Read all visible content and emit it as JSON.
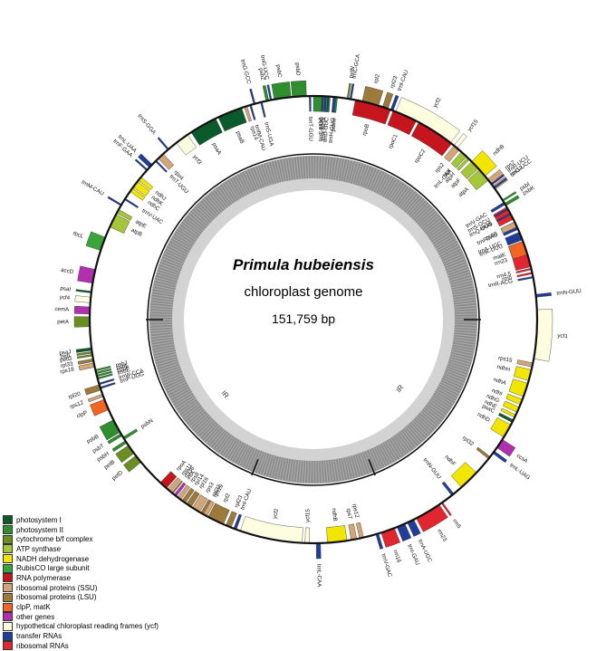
{
  "diagram": {
    "species": "Primula hubeiensis",
    "subtitle": "chloroplast genome",
    "length_label": "151,759 bp",
    "ir_labels": [
      "IR",
      "IR"
    ]
  },
  "legend": [
    {
      "label": "photosystem I",
      "color": "#0b5a2c"
    },
    {
      "label": "photosystem II",
      "color": "#2f8f2f"
    },
    {
      "label": "cytochrome b/f complex",
      "color": "#6b8e23"
    },
    {
      "label": "ATP synthase",
      "color": "#a4c639"
    },
    {
      "label": "NADH dehydrogenase",
      "color": "#f2e500"
    },
    {
      "label": "RubisCO large subunit",
      "color": "#3aa33a"
    },
    {
      "label": "RNA polymerase",
      "color": "#c4161c"
    },
    {
      "label": "ribosomal proteins (SSU)",
      "color": "#d2a679"
    },
    {
      "label": "ribosomal proteins (LSU)",
      "color": "#9c7a3c"
    },
    {
      "label": "clpP, matK",
      "color": "#f26522"
    },
    {
      "label": "other genes",
      "color": "#b030b0"
    },
    {
      "label": "hypothetical chloroplast reading frames (ycf)",
      "color": "#fffde0"
    },
    {
      "label": "transfer RNAs",
      "color": "#1f3d99"
    },
    {
      "label": "ribosomal RNAs",
      "color": "#e0262e"
    }
  ],
  "genes": [
    {
      "name": "psbA",
      "cat": "photosystem II",
      "pos": 0.0,
      "len": 0.012,
      "out": false
    },
    {
      "name": "trnH-GUG",
      "cat": "transfer RNAs",
      "pos": 0.014,
      "len": 0.003,
      "out": false
    },
    {
      "name": "rpl2",
      "cat": "ribosomal proteins (LSU)",
      "pos": 0.035,
      "len": 0.012,
      "out": true
    },
    {
      "name": "rpl23",
      "cat": "ribosomal proteins (LSU)",
      "pos": 0.05,
      "len": 0.004,
      "out": true
    },
    {
      "name": "trnI-CAU",
      "cat": "transfer RNAs",
      "pos": 0.056,
      "len": 0.002,
      "out": true
    },
    {
      "name": "ycf2",
      "cat": "hypothetical chloroplast reading frames (ycf)",
      "pos": 0.06,
      "len": 0.045,
      "out": true
    },
    {
      "name": "ycf15",
      "cat": "hypothetical chloroplast reading frames (ycf)",
      "pos": 0.108,
      "len": 0.003,
      "out": true
    },
    {
      "name": "trnL-CAA",
      "cat": "transfer RNAs",
      "pos": 0.117,
      "len": 0.003,
      "out": false
    },
    {
      "name": "ndhB",
      "cat": "NADH dehydrogenase",
      "pos": 0.125,
      "len": 0.014,
      "out": true
    },
    {
      "name": "rps7",
      "cat": "ribosomal proteins (SSU)",
      "pos": 0.142,
      "len": 0.004,
      "out": true
    },
    {
      "name": "rps12",
      "cat": "ribosomal proteins (SSU)",
      "pos": 0.148,
      "len": 0.003,
      "out": true
    },
    {
      "name": "trnV-GAC",
      "cat": "transfer RNAs",
      "pos": 0.162,
      "len": 0.002,
      "out": false
    },
    {
      "name": "rrn16",
      "cat": "ribosomal RNAs",
      "pos": 0.166,
      "len": 0.01,
      "out": false
    },
    {
      "name": "trnI-GAU",
      "cat": "transfer RNAs",
      "pos": 0.178,
      "len": 0.006,
      "out": false
    },
    {
      "name": "trnA-UGC",
      "cat": "transfer RNAs",
      "pos": 0.186,
      "len": 0.005,
      "out": false
    },
    {
      "name": "rrn23",
      "cat": "ribosomal RNAs",
      "pos": 0.193,
      "len": 0.019,
      "out": false
    },
    {
      "name": "rrn4.5",
      "cat": "ribosomal RNAs",
      "pos": 0.213,
      "len": 0.001,
      "out": false
    },
    {
      "name": "rrn5",
      "cat": "ribosomal RNAs",
      "pos": 0.216,
      "len": 0.001,
      "out": false
    },
    {
      "name": "trnR-ACG",
      "cat": "transfer RNAs",
      "pos": 0.219,
      "len": 0.001,
      "out": false
    },
    {
      "name": "trnN-GUU",
      "cat": "transfer RNAs",
      "pos": 0.232,
      "len": 0.002,
      "out": true
    },
    {
      "name": "ycf1",
      "cat": "hypothetical chloroplast reading frames (ycf)",
      "pos": 0.243,
      "len": 0.035,
      "out": true
    },
    {
      "name": "rps15",
      "cat": "ribosomal proteins (SSU)",
      "pos": 0.281,
      "len": 0.003,
      "out": false
    },
    {
      "name": "ndhH",
      "cat": "NADH dehydrogenase",
      "pos": 0.286,
      "len": 0.008,
      "out": false
    },
    {
      "name": "ndhA",
      "cat": "NADH dehydrogenase",
      "pos": 0.296,
      "len": 0.01,
      "out": false
    },
    {
      "name": "ndhI",
      "cat": "NADH dehydrogenase",
      "pos": 0.308,
      "len": 0.004,
      "out": false
    },
    {
      "name": "ndhG",
      "cat": "NADH dehydrogenase",
      "pos": 0.314,
      "len": 0.004,
      "out": false
    },
    {
      "name": "ndhE",
      "cat": "NADH dehydrogenase",
      "pos": 0.32,
      "len": 0.002,
      "out": false
    },
    {
      "name": "psaC",
      "cat": "photosystem I",
      "pos": 0.324,
      "len": 0.002,
      "out": false
    },
    {
      "name": "ndhD",
      "cat": "NADH dehydrogenase",
      "pos": 0.328,
      "len": 0.01,
      "out": false
    },
    {
      "name": "ccsA",
      "cat": "other genes",
      "pos": 0.34,
      "len": 0.007,
      "out": true
    },
    {
      "name": "trnL-UAG",
      "cat": "transfer RNAs",
      "pos": 0.35,
      "len": 0.002,
      "out": true
    },
    {
      "name": "rpl32",
      "cat": "ribosomal proteins (LSU)",
      "pos": 0.355,
      "len": 0.002,
      "out": false
    },
    {
      "name": "ndhF",
      "cat": "NADH dehydrogenase",
      "pos": 0.37,
      "len": 0.015,
      "out": false
    },
    {
      "name": "trnN-GUU",
      "cat": "transfer RNAs",
      "pos": 0.392,
      "len": 0.002,
      "out": false
    },
    {
      "name": "rrn5",
      "cat": "ribosomal RNAs",
      "pos": 0.402,
      "len": 0.001,
      "out": true
    },
    {
      "name": "rrn23",
      "cat": "ribosomal RNAs",
      "pos": 0.405,
      "len": 0.019,
      "out": true
    },
    {
      "name": "trnA-UGC",
      "cat": "transfer RNAs",
      "pos": 0.426,
      "len": 0.005,
      "out": true
    },
    {
      "name": "trnI-GAU",
      "cat": "transfer RNAs",
      "pos": 0.433,
      "len": 0.006,
      "out": true
    },
    {
      "name": "rrn16",
      "cat": "ribosomal RNAs",
      "pos": 0.441,
      "len": 0.01,
      "out": true
    },
    {
      "name": "trnV-GAC",
      "cat": "transfer RNAs",
      "pos": 0.453,
      "len": 0.002,
      "out": true
    },
    {
      "name": "rps12",
      "cat": "ribosomal proteins (SSU)",
      "pos": 0.464,
      "len": 0.003,
      "out": false
    },
    {
      "name": "rps7",
      "cat": "ribosomal proteins (SSU)",
      "pos": 0.469,
      "len": 0.004,
      "out": false
    },
    {
      "name": "ndhB",
      "cat": "NADH dehydrogenase",
      "pos": 0.476,
      "len": 0.014,
      "out": false
    },
    {
      "name": "trnL-CAA",
      "cat": "transfer RNAs",
      "pos": 0.495,
      "len": 0.003,
      "out": true
    },
    {
      "name": "ycf15",
      "cat": "hypothetical chloroplast reading frames (ycf)",
      "pos": 0.503,
      "len": 0.003,
      "out": false
    },
    {
      "name": "ycf2",
      "cat": "hypothetical chloroplast reading frames (ycf)",
      "pos": 0.508,
      "len": 0.045,
      "out": false
    },
    {
      "name": "trnI-CAU",
      "cat": "transfer RNAs",
      "pos": 0.556,
      "len": 0.002,
      "out": false
    },
    {
      "name": "rpl23",
      "cat": "ribosomal proteins (LSU)",
      "pos": 0.56,
      "len": 0.004,
      "out": false
    },
    {
      "name": "rpl2",
      "cat": "ribosomal proteins (LSU)",
      "pos": 0.566,
      "len": 0.012,
      "out": false
    },
    {
      "name": "rpl22",
      "cat": "ribosomal proteins (LSU)",
      "pos": 0.58,
      "len": 0.004,
      "out": false
    },
    {
      "name": "rps19",
      "cat": "ribosomal proteins (SSU)",
      "pos": 0.579,
      "len": 0.003,
      "out": false
    },
    {
      "name": "rps3",
      "cat": "ribosomal proteins (SSU)",
      "pos": 0.585,
      "len": 0.006,
      "out": false
    },
    {
      "name": "rpl16",
      "cat": "ribosomal proteins (LSU)",
      "pos": 0.592,
      "len": 0.004,
      "out": false
    },
    {
      "name": "rpl14",
      "cat": "ribosomal proteins (LSU)",
      "pos": 0.597,
      "len": 0.003,
      "out": false
    },
    {
      "name": "rps8",
      "cat": "ribosomal proteins (SSU)",
      "pos": 0.601,
      "len": 0.003,
      "out": false
    },
    {
      "name": "infA",
      "cat": "other genes",
      "pos": 0.605,
      "len": 0.002,
      "out": false
    },
    {
      "name": "rpl36",
      "cat": "ribosomal proteins (LSU)",
      "pos": 0.608,
      "len": 0.001,
      "out": false
    },
    {
      "name": "rps11",
      "cat": "ribosomal proteins (SSU)",
      "pos": 0.61,
      "len": 0.003,
      "out": false
    },
    {
      "name": "rpoA",
      "cat": "RNA polymerase",
      "pos": 0.614,
      "len": 0.006,
      "out": false
    },
    {
      "name": "petD",
      "cat": "cytochrome b/f complex",
      "pos": 0.64,
      "len": 0.006,
      "out": true
    },
    {
      "name": "petB",
      "cat": "cytochrome b/f complex",
      "pos": 0.648,
      "len": 0.007,
      "out": true
    },
    {
      "name": "psbH",
      "cat": "photosystem II",
      "pos": 0.657,
      "len": 0.002,
      "out": true
    },
    {
      "name": "psbN",
      "cat": "photosystem II",
      "pos": 0.66,
      "len": 0.002,
      "out": false
    },
    {
      "name": "psbT",
      "cat": "photosystem II",
      "pos": 0.663,
      "len": 0.002,
      "out": true
    },
    {
      "name": "psbB",
      "cat": "photosystem II",
      "pos": 0.666,
      "len": 0.01,
      "out": true
    },
    {
      "name": "clpP",
      "cat": "clpP, matK",
      "pos": 0.684,
      "len": 0.008,
      "out": true
    },
    {
      "name": "rps12",
      "cat": "ribosomal proteins (SSU)",
      "pos": 0.694,
      "len": 0.002,
      "out": true
    },
    {
      "name": "rpl20",
      "cat": "ribosomal proteins (LSU)",
      "pos": 0.699,
      "len": 0.004,
      "out": true
    },
    {
      "name": "rps18",
      "cat": "ribosomal proteins (SSU)",
      "pos": 0.716,
      "len": 0.003,
      "out": true
    },
    {
      "name": "rpl33",
      "cat": "ribosomal proteins (LSU)",
      "pos": 0.72,
      "len": 0.002,
      "out": true
    },
    {
      "name": "psaJ",
      "cat": "photosystem I",
      "pos": 0.728,
      "len": 0.002,
      "out": true
    },
    {
      "name": "trnP-UGG",
      "cat": "transfer RNAs",
      "pos": 0.7,
      "len": 0.001,
      "out": false
    },
    {
      "name": "trnW-CCA",
      "cat": "transfer RNAs",
      "pos": 0.703,
      "len": 0.001,
      "out": false
    },
    {
      "name": "petG",
      "cat": "cytochrome b/f complex",
      "pos": 0.724,
      "len": 0.001,
      "out": true
    },
    {
      "name": "petL",
      "cat": "cytochrome b/f complex",
      "pos": 0.726,
      "len": 0.001,
      "out": true
    },
    {
      "name": "psbE",
      "cat": "photosystem II",
      "pos": 0.707,
      "len": 0.001,
      "out": false
    },
    {
      "name": "psbF",
      "cat": "photosystem II",
      "pos": 0.709,
      "len": 0.001,
      "out": false
    },
    {
      "name": "psbL",
      "cat": "photosystem II",
      "pos": 0.711,
      "len": 0.001,
      "out": false
    },
    {
      "name": "psbJ",
      "cat": "photosystem II",
      "pos": 0.713,
      "len": 0.001,
      "out": false
    },
    {
      "name": "petA",
      "cat": "cytochrome b/f complex",
      "pos": 0.745,
      "len": 0.007,
      "out": true
    },
    {
      "name": "cemA",
      "cat": "other genes",
      "pos": 0.754,
      "len": 0.005,
      "out": true
    },
    {
      "name": "ycf4",
      "cat": "hypothetical chloroplast reading frames (ycf)",
      "pos": 0.762,
      "len": 0.004,
      "out": true
    },
    {
      "name": "psaI",
      "cat": "photosystem I",
      "pos": 0.769,
      "len": 0.001,
      "out": true
    },
    {
      "name": "accD",
      "cat": "other genes",
      "pos": 0.776,
      "len": 0.01,
      "out": true
    },
    {
      "name": "rbcL",
      "cat": "RubisCO large subunit",
      "pos": 0.8,
      "len": 0.01,
      "out": true
    },
    {
      "name": "atpB",
      "cat": "ATP synthase",
      "pos": 0.818,
      "len": 0.01,
      "out": false
    },
    {
      "name": "atpE",
      "cat": "ATP synthase",
      "pos": 0.829,
      "len": 0.003,
      "out": false
    },
    {
      "name": "trnM-CAU",
      "cat": "transfer RNAs",
      "pos": 0.835,
      "len": 0.001,
      "out": true
    },
    {
      "name": "trnV-UAC",
      "cat": "transfer RNAs",
      "pos": 0.84,
      "len": 0.001,
      "out": false
    },
    {
      "name": "ndhC",
      "cat": "NADH dehydrogenase",
      "pos": 0.847,
      "len": 0.003,
      "out": false
    },
    {
      "name": "ndhK",
      "cat": "NADH dehydrogenase",
      "pos": 0.851,
      "len": 0.005,
      "out": false
    },
    {
      "name": "ndhJ",
      "cat": "NADH dehydrogenase",
      "pos": 0.857,
      "len": 0.003,
      "out": false
    },
    {
      "name": "trnF-GAA",
      "cat": "transfer RNAs",
      "pos": 0.866,
      "len": 0.001,
      "out": true
    },
    {
      "name": "trnL-UAA",
      "cat": "transfer RNAs",
      "pos": 0.869,
      "len": 0.003,
      "out": true
    },
    {
      "name": "trnT-UGU",
      "cat": "transfer RNAs",
      "pos": 0.875,
      "len": 0.001,
      "out": false
    },
    {
      "name": "rps4",
      "cat": "ribosomal proteins (SSU)",
      "pos": 0.878,
      "len": 0.005,
      "out": false
    },
    {
      "name": "trnS-GGA",
      "cat": "transfer RNAs",
      "pos": 0.887,
      "len": 0.001,
      "out": true
    },
    {
      "name": "ycf3",
      "cat": "hypothetical chloroplast reading frames (ycf)",
      "pos": 0.895,
      "len": 0.01,
      "out": false
    },
    {
      "name": "psaA",
      "cat": "photosystem I",
      "pos": 0.908,
      "len": 0.02,
      "out": false
    },
    {
      "name": "psaB",
      "cat": "photosystem I",
      "pos": 0.93,
      "len": 0.018,
      "out": false
    },
    {
      "name": "rps14",
      "cat": "ribosomal proteins (SSU)",
      "pos": 0.95,
      "len": 0.002,
      "out": false
    },
    {
      "name": "trnfM-CAU",
      "cat": "transfer RNAs",
      "pos": 0.954,
      "len": 0.001,
      "out": false
    },
    {
      "name": "trnG-GCC",
      "cat": "transfer RNAs",
      "pos": 0.957,
      "len": 0.001,
      "out": true
    },
    {
      "name": "trnS-UGA",
      "cat": "transfer RNAs",
      "pos": 0.962,
      "len": 0.001,
      "out": false
    },
    {
      "name": "psbZ",
      "cat": "photosystem II",
      "pos": 0.966,
      "len": 0.002,
      "out": true
    },
    {
      "name": "trnG-UCC",
      "cat": "transfer RNAs",
      "pos": 0.969,
      "len": 0.001,
      "out": true
    },
    {
      "name": "psbC",
      "cat": "photosystem II",
      "pos": 0.972,
      "len": 0.012,
      "out": true
    },
    {
      "name": "psbD",
      "cat": "photosystem II",
      "pos": 0.985,
      "len": 0.01,
      "out": true
    },
    {
      "name": "trnT-GGU",
      "cat": "transfer RNAs",
      "pos": 0.997,
      "len": 0.001,
      "out": false
    },
    {
      "name": "trnE-UUC",
      "cat": "transfer RNAs",
      "pos": 0.006,
      "len": 0.001,
      "out": false
    },
    {
      "name": "trnY-GUA",
      "cat": "transfer RNAs",
      "pos": 0.008,
      "len": 0.001,
      "out": false
    },
    {
      "name": "trnD-GUC",
      "cat": "transfer RNAs",
      "pos": 0.01,
      "len": 0.001,
      "out": false
    },
    {
      "name": "psbM",
      "cat": "photosystem II",
      "pos": 0.016,
      "len": 0.001,
      "out": false
    },
    {
      "name": "petN",
      "cat": "cytochrome b/f complex",
      "pos": 0.024,
      "len": 0.001,
      "out": true
    },
    {
      "name": "trnC-GCA",
      "cat": "transfer RNAs",
      "pos": 0.026,
      "len": 0.001,
      "out": true
    },
    {
      "name": "rpoB",
      "cat": "RNA polymerase",
      "pos": 0.03,
      "len": 0.026,
      "out": false
    },
    {
      "name": "rpoC1",
      "cat": "RNA polymerase",
      "pos": 0.058,
      "len": 0.018,
      "out": false
    },
    {
      "name": "rpoC2",
      "cat": "RNA polymerase",
      "pos": 0.078,
      "len": 0.028,
      "out": false
    },
    {
      "name": "rps2",
      "cat": "ribosomal proteins (SSU)",
      "pos": 0.108,
      "len": 0.005,
      "out": false
    },
    {
      "name": "atpI",
      "cat": "ATP synthase",
      "pos": 0.115,
      "len": 0.005,
      "out": false
    },
    {
      "name": "atpH",
      "cat": "ATP synthase",
      "pos": 0.121,
      "len": 0.002,
      "out": false
    },
    {
      "name": "atpF",
      "cat": "ATP synthase",
      "pos": 0.125,
      "len": 0.007,
      "out": false
    },
    {
      "name": "atpA",
      "cat": "ATP synthase",
      "pos": 0.133,
      "len": 0.01,
      "out": false
    },
    {
      "name": "trnR-UCU",
      "cat": "transfer RNAs",
      "pos": 0.146,
      "len": 0.001,
      "out": true
    },
    {
      "name": "trnG-UCC",
      "cat": "transfer RNAs",
      "pos": 0.149,
      "len": 0.001,
      "out": true
    },
    {
      "name": "psbI",
      "cat": "photosystem II",
      "pos": 0.16,
      "len": 0.001,
      "out": true
    },
    {
      "name": "psbK",
      "cat": "photosystem II",
      "pos": 0.163,
      "len": 0.002,
      "out": true
    },
    {
      "name": "trnS-GCU",
      "cat": "transfer RNAs",
      "pos": 0.167,
      "len": 0.001,
      "out": false
    },
    {
      "name": "trnQ-UUG",
      "cat": "transfer RNAs",
      "pos": 0.171,
      "len": 0.001,
      "out": false
    },
    {
      "name": "rps16",
      "cat": "ribosomal proteins (SSU)",
      "pos": 0.178,
      "len": 0.004,
      "out": false
    },
    {
      "name": "trnK-UUU",
      "cat": "transfer RNAs",
      "pos": 0.19,
      "len": 0.002,
      "out": false
    },
    {
      "name": "matK",
      "cat": "clpP, matK",
      "pos": 0.193,
      "len": 0.01,
      "out": false
    }
  ],
  "labels": [
    {
      "text": "psbA",
      "pos": 0.3
    },
    {
      "text": "trnH-GUG",
      "pos": 0.0
    }
  ]
}
